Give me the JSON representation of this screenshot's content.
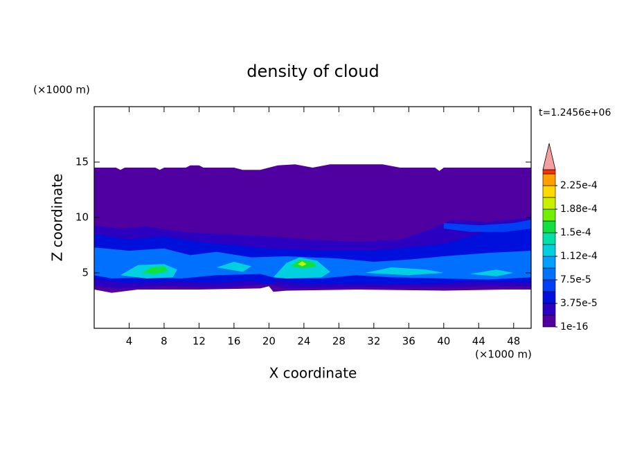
{
  "chart_data": {
    "type": "contour",
    "title": "density of cloud",
    "y_unit_label": "(×1000 m)",
    "x_unit_label": "(×1000 m)",
    "time_label": "t=1.2456e+06",
    "xlabel": "X coordinate",
    "ylabel": "Z coordinate",
    "xlim": [
      0,
      50
    ],
    "ylim": [
      0,
      20
    ],
    "xticks": [
      4,
      8,
      12,
      16,
      20,
      24,
      28,
      32,
      36,
      40,
      44,
      48
    ],
    "yticks": [
      5,
      10,
      15
    ],
    "levels": [
      1e-16,
      1.875e-05,
      3.75e-05,
      5.625e-05,
      7.5e-05,
      9.375e-05,
      0.0001125,
      0.00013125,
      0.00015,
      0.00016875,
      0.0001875,
      0.00020625,
      0.000225,
      0.00024375
    ],
    "colors": [
      "#5000a0",
      "#2c00c0",
      "#0010dc",
      "#0040f4",
      "#0070ff",
      "#00a0ff",
      "#00d0e0",
      "#00e0a8",
      "#10e040",
      "#70f000",
      "#c8f000",
      "#ffd800",
      "#ffa000",
      "#ff3000"
    ],
    "extend_color": "#f4a0a0",
    "colorbar_ticks": [
      {
        "value": 1e-16,
        "label": "1e-16"
      },
      {
        "value": 3.75e-05,
        "label": "3.75e-5"
      },
      {
        "value": 7.5e-05,
        "label": "7.5e-5"
      },
      {
        "value": 0.0001125,
        "label": "1.12e-4"
      },
      {
        "value": 0.00015,
        "label": "1.5e-4"
      },
      {
        "value": 0.0001875,
        "label": "1.88e-4"
      },
      {
        "value": 0.000225,
        "label": "2.25e-4"
      }
    ],
    "regions": [
      {
        "level": 0,
        "points": [
          [
            0,
            14.5
          ],
          [
            2.5,
            14.5
          ],
          [
            3,
            14.3
          ],
          [
            3.5,
            14.5
          ],
          [
            7,
            14.5
          ],
          [
            7.5,
            14.3
          ],
          [
            8,
            14.5
          ],
          [
            10.5,
            14.5
          ],
          [
            11,
            14.7
          ],
          [
            12,
            14.7
          ],
          [
            12.5,
            14.5
          ],
          [
            16,
            14.5
          ],
          [
            17,
            14.3
          ],
          [
            19,
            14.3
          ],
          [
            20,
            14.5
          ],
          [
            21,
            14.7
          ],
          [
            23,
            14.8
          ],
          [
            25,
            14.5
          ],
          [
            27,
            14.8
          ],
          [
            33,
            14.8
          ],
          [
            35,
            14.5
          ],
          [
            39,
            14.5
          ],
          [
            39.5,
            14.2
          ],
          [
            40,
            14.5
          ],
          [
            50,
            14.5
          ],
          [
            50,
            3.5
          ],
          [
            47,
            3.5
          ],
          [
            40,
            3.4
          ],
          [
            30,
            3.5
          ],
          [
            22,
            3.4
          ],
          [
            20.5,
            3.3
          ],
          [
            20,
            3.8
          ],
          [
            19,
            3.6
          ],
          [
            12,
            3.5
          ],
          [
            5,
            3.5
          ],
          [
            2,
            3.2
          ],
          [
            0,
            3.5
          ]
        ]
      },
      {
        "level": 1,
        "points": [
          [
            0,
            9.3
          ],
          [
            3,
            9
          ],
          [
            6,
            9.2
          ],
          [
            10,
            8.7
          ],
          [
            15,
            8.5
          ],
          [
            20,
            8.3
          ],
          [
            25,
            8.0
          ],
          [
            30,
            7.8
          ],
          [
            35,
            8
          ],
          [
            38,
            8.8
          ],
          [
            41,
            9.8
          ],
          [
            45,
            9.6
          ],
          [
            50,
            10
          ],
          [
            50,
            3.8
          ],
          [
            45,
            3.8
          ],
          [
            40,
            3.7
          ],
          [
            30,
            3.7
          ],
          [
            22,
            3.6
          ],
          [
            20,
            4.0
          ],
          [
            15,
            3.7
          ],
          [
            8,
            3.8
          ],
          [
            3,
            3.6
          ],
          [
            0,
            3.8
          ]
        ]
      },
      {
        "level": 2,
        "points": [
          [
            0,
            8.5
          ],
          [
            4,
            8
          ],
          [
            8,
            8.3
          ],
          [
            12,
            7.8
          ],
          [
            16,
            7.5
          ],
          [
            20,
            7.2
          ],
          [
            26,
            7.0
          ],
          [
            32,
            7.0
          ],
          [
            36,
            7.3
          ],
          [
            40,
            7.6
          ],
          [
            44,
            8.5
          ],
          [
            47,
            9.3
          ],
          [
            50,
            9.4
          ],
          [
            50,
            4.1
          ],
          [
            44,
            4.2
          ],
          [
            38,
            4.0
          ],
          [
            30,
            4.0
          ],
          [
            24,
            4.0
          ],
          [
            21,
            4.3
          ],
          [
            20,
            3.9
          ],
          [
            18,
            4.3
          ],
          [
            14,
            4.1
          ],
          [
            9,
            4.2
          ],
          [
            4,
            4.1
          ],
          [
            0,
            4.4
          ]
        ]
      },
      {
        "level": 3,
        "points": [
          [
            40,
            9.5
          ],
          [
            44,
            9.3
          ],
          [
            48,
            9.5
          ],
          [
            50,
            9.8
          ],
          [
            50,
            9.0
          ],
          [
            47,
            8.7
          ],
          [
            43,
            8.7
          ],
          [
            40,
            9.0
          ]
        ]
      },
      {
        "level": 4,
        "points": [
          [
            0,
            7.3
          ],
          [
            4,
            7.0
          ],
          [
            8,
            7.2
          ],
          [
            11,
            6.6
          ],
          [
            14,
            6.9
          ],
          [
            18,
            6.4
          ],
          [
            22,
            6.5
          ],
          [
            28,
            6.3
          ],
          [
            32,
            6.0
          ],
          [
            36,
            6.2
          ],
          [
            40,
            6.5
          ],
          [
            45,
            6.8
          ],
          [
            50,
            7.0
          ],
          [
            50,
            4.6
          ],
          [
            45,
            4.4
          ],
          [
            40,
            4.5
          ],
          [
            34,
            4.6
          ],
          [
            30,
            4.8
          ],
          [
            26,
            4.5
          ],
          [
            22,
            4.5
          ],
          [
            20.5,
            4.6
          ],
          [
            19,
            4.9
          ],
          [
            14,
            4.8
          ],
          [
            10,
            4.5
          ],
          [
            6,
            4.6
          ],
          [
            2,
            4.5
          ],
          [
            0,
            4.8
          ]
        ]
      },
      {
        "level": 6,
        "points": [
          [
            3,
            4.8
          ],
          [
            5,
            5.7
          ],
          [
            8,
            5.8
          ],
          [
            9.5,
            5.3
          ],
          [
            9,
            4.6
          ],
          [
            6,
            4.5
          ]
        ]
      },
      {
        "level": 6,
        "points": [
          [
            20.5,
            4.6
          ],
          [
            22,
            5.9
          ],
          [
            23.5,
            6.4
          ],
          [
            25.5,
            6.1
          ],
          [
            27,
            5.1
          ],
          [
            26,
            4.6
          ],
          [
            22,
            4.5
          ]
        ]
      },
      {
        "level": 6,
        "points": [
          [
            14,
            5.5
          ],
          [
            16,
            6.0
          ],
          [
            18,
            5.6
          ],
          [
            17,
            5.1
          ]
        ]
      },
      {
        "level": 6,
        "points": [
          [
            31,
            5.0
          ],
          [
            34,
            5.5
          ],
          [
            38,
            5.3
          ],
          [
            40,
            5.0
          ],
          [
            36,
            4.8
          ]
        ]
      },
      {
        "level": 6,
        "points": [
          [
            43,
            4.9
          ],
          [
            46,
            5.3
          ],
          [
            48,
            5.0
          ],
          [
            46,
            4.7
          ]
        ]
      },
      {
        "level": 8,
        "points": [
          [
            5.5,
            5.0
          ],
          [
            6.5,
            5.5
          ],
          [
            8,
            5.6
          ],
          [
            8.5,
            5.2
          ],
          [
            7,
            4.9
          ]
        ]
      },
      {
        "level": 8,
        "points": [
          [
            22.5,
            5.6
          ],
          [
            23.5,
            6.2
          ],
          [
            25,
            6.0
          ],
          [
            25.5,
            5.6
          ],
          [
            24,
            5.4
          ]
        ]
      },
      {
        "level": 10,
        "points": [
          [
            23.3,
            5.8
          ],
          [
            23.8,
            6.05
          ],
          [
            24.3,
            5.8
          ],
          [
            23.8,
            5.6
          ]
        ]
      }
    ]
  }
}
